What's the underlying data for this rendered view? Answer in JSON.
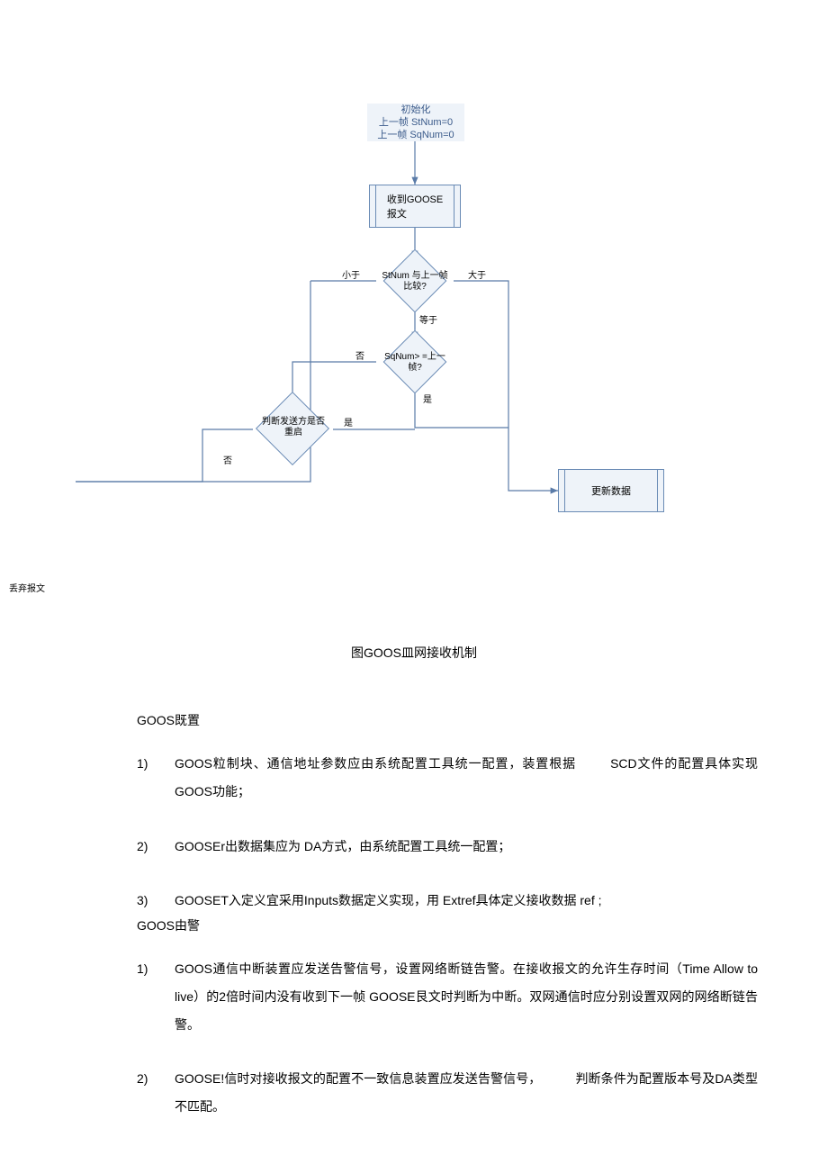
{
  "flow": {
    "init_line1": "初始化",
    "init_line2": "上一帧 StNum=0",
    "init_line3": "上一帧 SqNum=0",
    "recv": "收到GOOSE\n报文",
    "cmp_stnum": "StNum 与上一帧\n比较?",
    "cmp_sqnum": "SqNum> =上一\n帧?",
    "restart": "判断发送方是否\n重启",
    "update": "更新数据",
    "discard": "丢弃报文",
    "lt": "小于",
    "gt": "大于",
    "eq": "等于",
    "yes": "是",
    "no": "否",
    "colors": {
      "node_fill": "#eef3f9",
      "node_border": "#6a8bb5",
      "arrow": "#5a7ba8"
    }
  },
  "caption": "图GOOS皿网接收机制",
  "section1": {
    "title": "GOOS既置",
    "items": [
      "GOOS粒制块、通信地址参数应由系统配置工具统一配置，装置根据<span class=\"gap\"></span>SCD文件的配置具体实现GOOS功能；",
      "GOOSEr出数据集应为 DA方式，由系统配置工具统一配置；",
      "GOOSET入定义宜采用Inputs数据定义实现，用 Extref具体定义接收数据 ref ;"
    ]
  },
  "section2": {
    "title": "GOOS由警",
    "items": [
      "GOOS通信中断装置应发送告警信号，设置网络断链告警。在接收报文的允许生存时间（Time Allow to live）的2倍时间内没有收到下一帧 GOOSE艮文时判断为中断。双网通信时应分别设置双网的网络断链告警。",
      "GOOSE!信时对接收报文的配置不一致信息装置应发送告警信号，<span class=\"gap\"></span>判断条件为配置版本号及DA类型不匹配。"
    ]
  }
}
